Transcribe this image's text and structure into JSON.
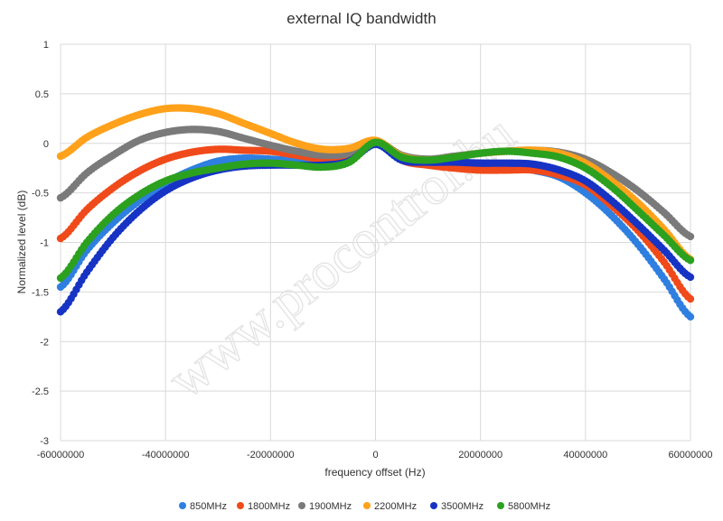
{
  "chart_data": {
    "type": "scatter",
    "title": "external IQ bandwidth",
    "xlabel": "frequency offset (Hz)",
    "ylabel": "Normalized level (dB)",
    "xlim": [
      -60000000,
      60000000
    ],
    "ylim": [
      -3,
      1
    ],
    "x_ticks": [
      -60000000,
      -40000000,
      -20000000,
      0,
      20000000,
      40000000,
      60000000
    ],
    "y_ticks": [
      -3,
      -2.5,
      -2,
      -1.5,
      -1,
      -0.5,
      0,
      0.5,
      1
    ],
    "grid": true,
    "legend_position": "bottom",
    "watermark": "www.procontrol.hu",
    "x": [
      -60000000,
      -55000000,
      -50000000,
      -45000000,
      -40000000,
      -35000000,
      -30000000,
      -25000000,
      -20000000,
      -15000000,
      -10000000,
      -5000000,
      0,
      5000000,
      10000000,
      15000000,
      20000000,
      25000000,
      30000000,
      35000000,
      40000000,
      45000000,
      50000000,
      55000000,
      60000000
    ],
    "series": [
      {
        "name": "850MHz",
        "color": "#2e7fe0",
        "values": [
          -1.45,
          -1.08,
          -0.8,
          -0.58,
          -0.4,
          -0.27,
          -0.18,
          -0.15,
          -0.16,
          -0.18,
          -0.2,
          -0.16,
          0.0,
          -0.17,
          -0.2,
          -0.2,
          -0.2,
          -0.22,
          -0.27,
          -0.34,
          -0.5,
          -0.73,
          -1.02,
          -1.37,
          -1.75
        ]
      },
      {
        "name": "1800MHz",
        "color": "#f04a1a",
        "values": [
          -0.96,
          -0.67,
          -0.45,
          -0.28,
          -0.16,
          -0.09,
          -0.06,
          -0.07,
          -0.08,
          -0.12,
          -0.16,
          -0.14,
          0.02,
          -0.17,
          -0.22,
          -0.25,
          -0.27,
          -0.27,
          -0.27,
          -0.32,
          -0.42,
          -0.63,
          -0.88,
          -1.2,
          -1.57
        ]
      },
      {
        "name": "1900MHz",
        "color": "#7a7a7a",
        "values": [
          -0.55,
          -0.3,
          -0.12,
          0.03,
          0.11,
          0.14,
          0.12,
          0.05,
          -0.02,
          -0.08,
          -0.12,
          -0.1,
          0.02,
          -0.12,
          -0.16,
          -0.13,
          -0.1,
          -0.08,
          -0.07,
          -0.09,
          -0.16,
          -0.3,
          -0.48,
          -0.7,
          -0.94
        ]
      },
      {
        "name": "2200MHz",
        "color": "#ffa11a",
        "values": [
          -0.13,
          0.06,
          0.19,
          0.29,
          0.35,
          0.35,
          0.3,
          0.2,
          0.1,
          0.0,
          -0.06,
          -0.05,
          0.03,
          -0.13,
          -0.17,
          -0.14,
          -0.1,
          -0.08,
          -0.07,
          -0.1,
          -0.2,
          -0.38,
          -0.6,
          -0.87,
          -1.17
        ]
      },
      {
        "name": "3500MHz",
        "color": "#1633c4",
        "values": [
          -1.7,
          -1.3,
          -0.95,
          -0.68,
          -0.48,
          -0.35,
          -0.27,
          -0.23,
          -0.22,
          -0.22,
          -0.22,
          -0.18,
          -0.01,
          -0.17,
          -0.19,
          -0.19,
          -0.2,
          -0.2,
          -0.21,
          -0.27,
          -0.38,
          -0.58,
          -0.82,
          -1.08,
          -1.35
        ]
      },
      {
        "name": "5800MHz",
        "color": "#2ba11f",
        "values": [
          -1.36,
          -1.0,
          -0.72,
          -0.52,
          -0.38,
          -0.3,
          -0.25,
          -0.21,
          -0.2,
          -0.22,
          -0.24,
          -0.19,
          0.01,
          -0.14,
          -0.17,
          -0.14,
          -0.1,
          -0.08,
          -0.1,
          -0.14,
          -0.25,
          -0.44,
          -0.68,
          -0.93,
          -1.18
        ]
      }
    ]
  }
}
